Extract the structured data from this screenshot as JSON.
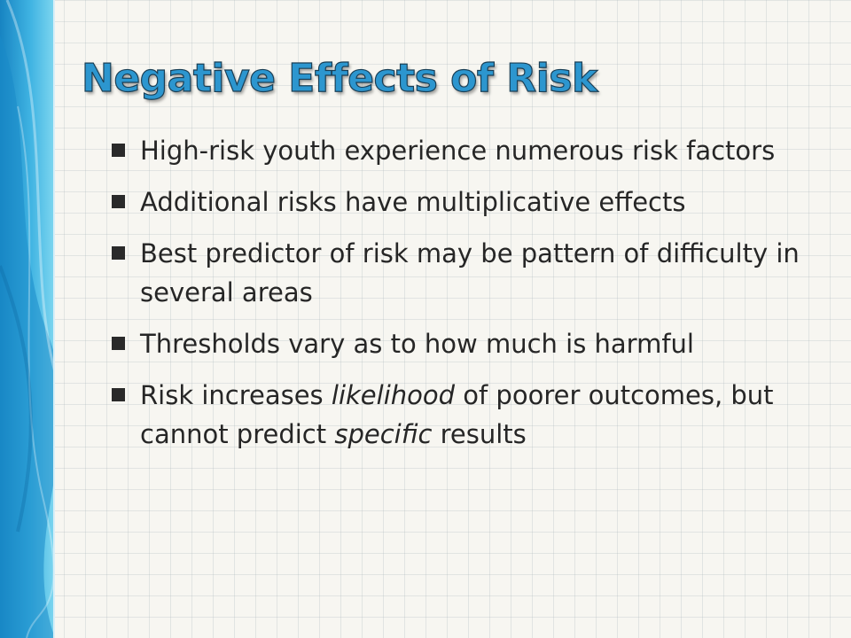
{
  "slide": {
    "title": "Negative Effects of Risk",
    "colors": {
      "title_fill": "#2c96cf",
      "title_outline": "#1b3f55",
      "band_light": "#6fd0ee",
      "band_dark": "#1784c2",
      "background": "#f7f6f1"
    },
    "bullets": [
      {
        "segments": [
          {
            "text": "High-risk youth experience numerous risk factors",
            "style": "normal"
          }
        ]
      },
      {
        "segments": [
          {
            "text": "Additional risks have multiplicative effects",
            "style": "normal"
          }
        ]
      },
      {
        "segments": [
          {
            "text": "Best predictor of risk may be pattern of difficulty in several areas",
            "style": "normal"
          }
        ]
      },
      {
        "segments": [
          {
            "text": "Thresholds vary as to how much is harmful",
            "style": "normal"
          }
        ]
      },
      {
        "segments": [
          {
            "text": "Risk increases ",
            "style": "normal"
          },
          {
            "text": "likelihood",
            "style": "italic"
          },
          {
            "text": " of poorer outcomes, but cannot predict ",
            "style": "normal"
          },
          {
            "text": "specific",
            "style": "italic"
          },
          {
            "text": " results",
            "style": "normal"
          }
        ]
      }
    ]
  }
}
